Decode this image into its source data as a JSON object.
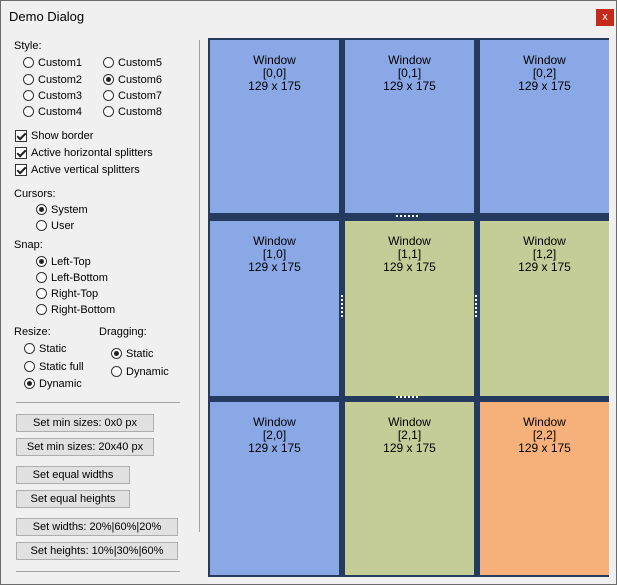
{
  "window": {
    "title": "Demo Dialog",
    "close_label": "x"
  },
  "style": {
    "label": "Style:",
    "options": [
      "Custom1",
      "Custom2",
      "Custom3",
      "Custom4",
      "Custom5",
      "Custom6",
      "Custom7",
      "Custom8"
    ],
    "selected": "Custom6"
  },
  "checks": [
    {
      "label": "Show border",
      "checked": true
    },
    {
      "label": "Active horizontal splitters",
      "checked": true
    },
    {
      "label": "Active vertical splitters",
      "checked": true
    }
  ],
  "cursors": {
    "label": "Cursors:",
    "options": [
      "System",
      "User"
    ],
    "selected": "System"
  },
  "snap": {
    "label": "Snap:",
    "options": [
      "Left-Top",
      "Left-Bottom",
      "Right-Top",
      "Right-Bottom"
    ],
    "selected": "Left-Top"
  },
  "resize": {
    "label": "Resize:",
    "options": [
      "Static",
      "Static full",
      "Dynamic"
    ],
    "selected": "Dynamic"
  },
  "dragging": {
    "label": "Dragging:",
    "options": [
      "Static",
      "Dynamic"
    ],
    "selected": "Static"
  },
  "buttons": {
    "min0": "Set min sizes: 0x0 px",
    "min20": "Set min sizes: 20x40 px",
    "eqw": "Set equal widths",
    "eqh": "Set equal heights",
    "widths": "Set widths: 20%|60%|20%",
    "heights": "Set heights: 10%|30%|60%"
  },
  "cells": [
    {
      "title": "Window",
      "idx": "[0,0]",
      "size": "129 x 175",
      "color": "#8aa8e6"
    },
    {
      "title": "Window",
      "idx": "[0,1]",
      "size": "129 x 175",
      "color": "#8aa8e6"
    },
    {
      "title": "Window",
      "idx": "[0,2]",
      "size": "129 x 175",
      "color": "#8aa8e6"
    },
    {
      "title": "Window",
      "idx": "[1,0]",
      "size": "129 x 175",
      "color": "#8aa8e6"
    },
    {
      "title": "Window",
      "idx": "[1,1]",
      "size": "129 x 175",
      "color": "#c4cc98"
    },
    {
      "title": "Window",
      "idx": "[1,2]",
      "size": "129 x 175",
      "color": "#c4cc98"
    },
    {
      "title": "Window",
      "idx": "[2,0]",
      "size": "129 x 175",
      "color": "#8aa8e6"
    },
    {
      "title": "Window",
      "idx": "[2,1]",
      "size": "129 x 175",
      "color": "#c4cc98"
    },
    {
      "title": "Window",
      "idx": "[2,2]",
      "size": "129 x 175",
      "color": "#f6b07a"
    }
  ]
}
